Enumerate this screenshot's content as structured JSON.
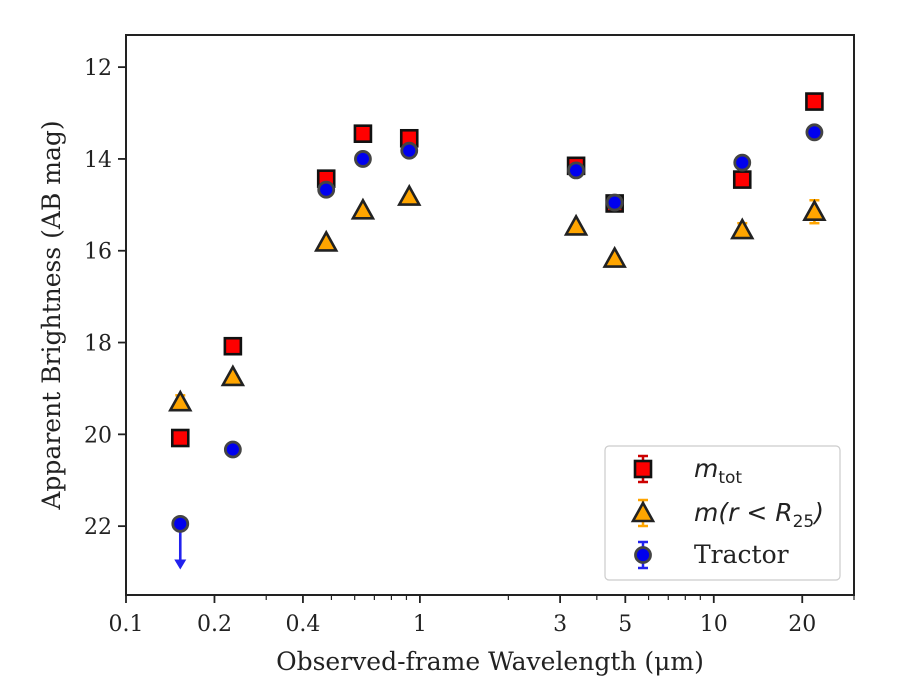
{
  "chart_data": {
    "type": "scatter",
    "xlabel": "Observed-frame Wavelength (μm)",
    "ylabel": "Apparent Brightness (AB mag)",
    "xscale": "log",
    "xlim": [
      0.1,
      30
    ],
    "ylim": [
      23.5,
      11.3
    ],
    "y_inverted": true,
    "x_ticks": [
      {
        "value": 0.1,
        "label": "0.1"
      },
      {
        "value": 0.2,
        "label": "0.2"
      },
      {
        "value": 0.4,
        "label": "0.4"
      },
      {
        "value": 1,
        "label": "1"
      },
      {
        "value": 3,
        "label": "3"
      },
      {
        "value": 5,
        "label": "5"
      },
      {
        "value": 10,
        "label": "10"
      },
      {
        "value": 20,
        "label": "20"
      }
    ],
    "x_minor_ticks": [
      0.3,
      0.5,
      0.6,
      0.7,
      0.8,
      0.9,
      2,
      4,
      6,
      7,
      8,
      9,
      30
    ],
    "y_ticks": [
      {
        "value": 12,
        "label": "12"
      },
      {
        "value": 14,
        "label": "14"
      },
      {
        "value": 16,
        "label": "16"
      },
      {
        "value": 18,
        "label": "18"
      },
      {
        "value": 20,
        "label": "20"
      },
      {
        "value": 22,
        "label": "22"
      }
    ],
    "grid": false,
    "legend_position": "bottom-right",
    "series": [
      {
        "name": "m_tot",
        "legend_label": {
          "base": "m",
          "sub": "tot"
        },
        "marker": "square",
        "color": "#ff0000",
        "error_color": "#cc0000",
        "points": [
          {
            "x": 0.153,
            "y": 20.08
          },
          {
            "x": 0.231,
            "y": 18.08
          },
          {
            "x": 0.48,
            "y": 14.43
          },
          {
            "x": 0.64,
            "y": 13.45
          },
          {
            "x": 0.92,
            "y": 13.55
          },
          {
            "x": 3.4,
            "y": 14.15
          },
          {
            "x": 4.6,
            "y": 14.97
          },
          {
            "x": 12.5,
            "y": 14.45
          },
          {
            "x": 22,
            "y": 12.75
          }
        ]
      },
      {
        "name": "m(r < R25)",
        "legend_label": {
          "base": "m(r < R",
          "sub": "25",
          "tail": ")"
        },
        "marker": "triangle",
        "color": "#ffa500",
        "error_color": "#ffa500",
        "points": [
          {
            "x": 0.153,
            "y": 19.3,
            "err": 0.15
          },
          {
            "x": 0.231,
            "y": 18.75
          },
          {
            "x": 0.48,
            "y": 15.82
          },
          {
            "x": 0.64,
            "y": 15.12
          },
          {
            "x": 0.92,
            "y": 14.82
          },
          {
            "x": 3.4,
            "y": 15.47
          },
          {
            "x": 4.6,
            "y": 16.17
          },
          {
            "x": 12.5,
            "y": 15.55,
            "err": 0.15
          },
          {
            "x": 22,
            "y": 15.15,
            "err": 0.25
          }
        ]
      },
      {
        "name": "Tractor",
        "legend_label": {
          "base": "Tractor"
        },
        "marker": "circle",
        "color": "#0000ee",
        "error_color": "#2222ee",
        "points": [
          {
            "x": 0.153,
            "y": 21.95,
            "upper_limit": true,
            "arrow_to": 22.9
          },
          {
            "x": 0.231,
            "y": 20.33
          },
          {
            "x": 0.48,
            "y": 14.67
          },
          {
            "x": 0.64,
            "y": 14.0
          },
          {
            "x": 0.92,
            "y": 13.82
          },
          {
            "x": 3.4,
            "y": 14.25
          },
          {
            "x": 4.6,
            "y": 14.95
          },
          {
            "x": 12.5,
            "y": 14.08
          },
          {
            "x": 22,
            "y": 13.42
          }
        ]
      }
    ]
  }
}
